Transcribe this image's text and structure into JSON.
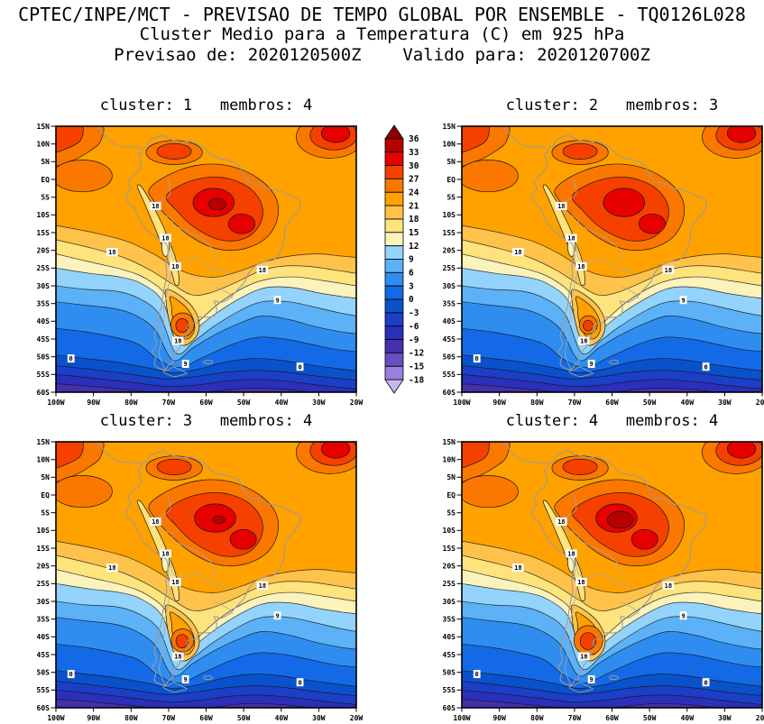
{
  "header": {
    "line1": "CPTEC/INPE/MCT - PREVISAO DE TEMPO GLOBAL POR ENSEMBLE - TQ0126L028",
    "line2": "Cluster Medio para a Temperatura (C) em 925 hPa",
    "line3": "Previsao de: 2020120500Z    Valido para: 2020120700Z"
  },
  "panels": [
    {
      "title": "cluster: 1   membros: 4",
      "cluster": 1,
      "membros": 4
    },
    {
      "title": "cluster: 2   membros: 3",
      "cluster": 2,
      "membros": 3
    },
    {
      "title": "cluster: 3   membros: 4",
      "cluster": 3,
      "membros": 4
    },
    {
      "title": "cluster: 4   membros: 4",
      "cluster": 4,
      "membros": 4
    }
  ],
  "axes": {
    "lat_labels": [
      "15N",
      "10N",
      "5N",
      "EQ",
      "5S",
      "10S",
      "15S",
      "20S",
      "25S",
      "30S",
      "35S",
      "40S",
      "45S",
      "50S",
      "55S",
      "60S"
    ],
    "lon_labels": [
      "100W",
      "90W",
      "80W",
      "70W",
      "60W",
      "50W",
      "40W",
      "30W",
      "20W"
    ]
  },
  "colorbar": {
    "values": [
      "36",
      "33",
      "30",
      "27",
      "24",
      "21",
      "18",
      "15",
      "12",
      "9",
      "6",
      "3",
      "0",
      "-3",
      "-6",
      "-9",
      "-12",
      "-15",
      "-18"
    ],
    "colors": [
      "#8c0000",
      "#b80000",
      "#e60000",
      "#f54000",
      "#fa7800",
      "#ffa200",
      "#ffc34b",
      "#ffe37d",
      "#fcf2bc",
      "#93d3fc",
      "#5cb1f7",
      "#2f8df0",
      "#146ae6",
      "#0a52cc",
      "#1c3fc8",
      "#2b2fba",
      "#4530ad",
      "#6a4ec4",
      "#9b7fdd",
      "#cbb6f2"
    ]
  },
  "chart_data": {
    "type": "heatmap",
    "subtype": "filled-contour-map",
    "title": "Cluster Medio para a Temperatura (C) em 925 hPa",
    "model": "CPTEC/INPE/MCT - PREVISAO DE TEMPO GLOBAL POR ENSEMBLE - TQ0126L028",
    "forecast_init": "2020120500Z",
    "forecast_valid": "2020120700Z",
    "lon_range": [
      -100,
      -20
    ],
    "lat_range": [
      -60,
      15
    ],
    "contour_interval": 3,
    "contour_levels": [
      36,
      33,
      30,
      27,
      24,
      21,
      18,
      15,
      12,
      9,
      6,
      3,
      0,
      -3,
      -6,
      -9,
      -12,
      -15,
      -18
    ],
    "legend_position": "vertical colorbar between upper panels",
    "panels": [
      {
        "cluster": 1,
        "membros": 4
      },
      {
        "cluster": 2,
        "membros": 3
      },
      {
        "cluster": 3,
        "membros": 4
      },
      {
        "cluster": 4,
        "membros": 4
      }
    ],
    "contour_labels": [
      {
        "lon": -73.5,
        "lat": -7.5,
        "text": "18"
      },
      {
        "lon": -70.8,
        "lat": -16.5,
        "text": "18"
      },
      {
        "lon": -68.2,
        "lat": -24.5,
        "text": "18"
      },
      {
        "lon": -85.0,
        "lat": -20.5,
        "text": "18"
      },
      {
        "lon": -45.0,
        "lat": -25.5,
        "text": "18"
      },
      {
        "lon": -67.5,
        "lat": -45.5,
        "text": "18"
      },
      {
        "lon": -65.5,
        "lat": -52.0,
        "text": "9"
      },
      {
        "lon": -41.0,
        "lat": -34.0,
        "text": "9"
      },
      {
        "lon": -96.0,
        "lat": -50.5,
        "text": "0"
      },
      {
        "lon": -35.0,
        "lat": -52.8,
        "text": "0"
      }
    ]
  }
}
